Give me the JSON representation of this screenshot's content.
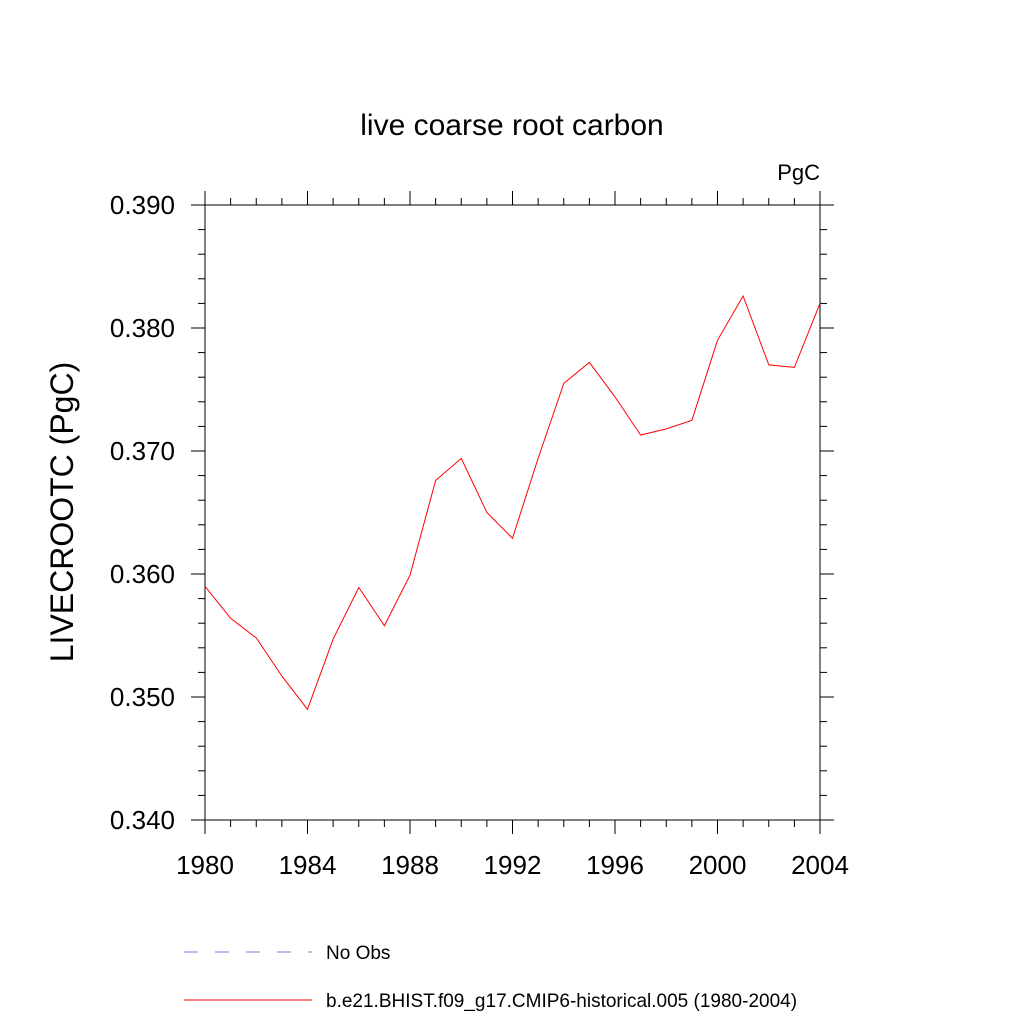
{
  "chart_data": {
    "type": "line",
    "title": "live coarse root carbon",
    "units_label": "PgC",
    "ylabel": "LIVECROOTC  (PgC)",
    "xlabel": "",
    "xlim": [
      1980,
      2004
    ],
    "ylim": [
      0.34,
      0.39
    ],
    "x_ticks": [
      1980,
      1984,
      1988,
      1992,
      1996,
      2000,
      2004
    ],
    "x_tick_labels": [
      "1980",
      "1984",
      "1988",
      "1992",
      "1996",
      "2000",
      "2004"
    ],
    "y_ticks": [
      0.34,
      0.35,
      0.36,
      0.37,
      0.38,
      0.39
    ],
    "y_tick_labels": [
      "0.340",
      "0.350",
      "0.360",
      "0.370",
      "0.380",
      "0.390"
    ],
    "grid": false,
    "legend_position": "bottom",
    "series": [
      {
        "name": "b.e21.BHIST.f09_g17.CMIP6-historical.005 (1980-2004)",
        "color": "#ff0000",
        "style": "solid",
        "x": [
          1980,
          1981,
          1982,
          1983,
          1984,
          1985,
          1986,
          1987,
          1988,
          1989,
          1990,
          1991,
          1992,
          1993,
          1994,
          1995,
          1996,
          1997,
          1998,
          1999,
          2000,
          2001,
          2002,
          2003,
          2004
        ],
        "values": [
          0.359,
          0.3564,
          0.3548,
          0.3517,
          0.349,
          0.3547,
          0.3589,
          0.3558,
          0.3599,
          0.3676,
          0.3694,
          0.365,
          0.3629,
          0.3694,
          0.3755,
          0.3772,
          0.3744,
          0.3713,
          0.3718,
          0.3725,
          0.379,
          0.3826,
          0.377,
          0.3768,
          0.382
        ]
      }
    ],
    "legend": [
      {
        "label": "No Obs",
        "color": "#7b7bd8",
        "style": "dashed"
      },
      {
        "label": "b.e21.BHIST.f09_g17.CMIP6-historical.005 (1980-2004)",
        "color": "#ff0000",
        "style": "solid"
      }
    ]
  }
}
